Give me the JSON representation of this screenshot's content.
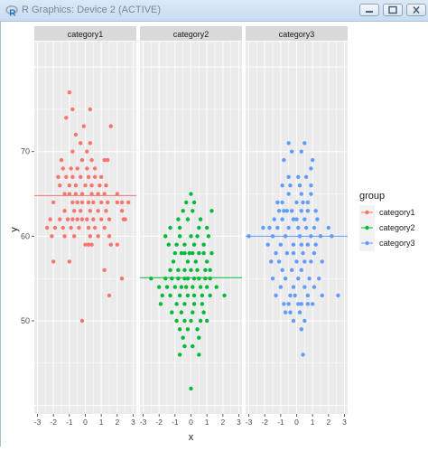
{
  "window": {
    "title": "R Graphics: Device 2 (ACTIVE)",
    "app_icon": "r-logo-icon",
    "controls": [
      "minimize-icon",
      "maximize-icon",
      "close-icon"
    ]
  },
  "chart_data": {
    "type": "scatter",
    "facet_by": "group",
    "xlabel": "x",
    "ylabel": "y",
    "xlim": [
      -3.2,
      3.2
    ],
    "ylim": [
      39,
      83
    ],
    "x_ticks": [
      "-3",
      "-2",
      "-1",
      "0",
      "1",
      "2",
      "3"
    ],
    "y_ticks": [
      "50",
      "60",
      "70"
    ],
    "grid": true,
    "legend": {
      "title": "group",
      "position": "right",
      "entries": [
        "category1",
        "category2",
        "category3"
      ]
    },
    "colors": {
      "category1": "#F8766D",
      "category2": "#00BA38",
      "category3": "#619CFF",
      "panel_bg": "#EBEBEB",
      "strip_bg": "#D9D9D9",
      "grid": "#FFFFFF"
    },
    "series": [
      {
        "name": "category1",
        "facet": "category1",
        "hline": 64.8,
        "points": [
          [
            -1,
            77
          ],
          [
            -0.8,
            75
          ],
          [
            0.3,
            75
          ],
          [
            -1.2,
            74
          ],
          [
            -0.1,
            73
          ],
          [
            1.6,
            73
          ],
          [
            -0.6,
            72
          ],
          [
            -0.3,
            71
          ],
          [
            0.3,
            71
          ],
          [
            -0.8,
            70
          ],
          [
            0.1,
            70
          ],
          [
            -1.5,
            69
          ],
          [
            -0.2,
            69
          ],
          [
            0.4,
            69
          ],
          [
            1.2,
            69
          ],
          [
            1.4,
            69
          ],
          [
            -1.4,
            68
          ],
          [
            -0.9,
            68
          ],
          [
            -0.5,
            68
          ],
          [
            0.1,
            68
          ],
          [
            0.6,
            68
          ],
          [
            -1.7,
            67
          ],
          [
            -1.2,
            67
          ],
          [
            -0.8,
            67
          ],
          [
            -0.3,
            67
          ],
          [
            0.2,
            67
          ],
          [
            0.6,
            67
          ],
          [
            1.0,
            67
          ],
          [
            -1.6,
            66
          ],
          [
            -1.0,
            66
          ],
          [
            -0.6,
            66
          ],
          [
            0,
            66
          ],
          [
            0.4,
            66
          ],
          [
            0.9,
            66
          ],
          [
            1.3,
            66
          ],
          [
            -1.3,
            65
          ],
          [
            -1.0,
            65
          ],
          [
            -0.6,
            65
          ],
          [
            -0.2,
            65
          ],
          [
            0.4,
            65
          ],
          [
            0.8,
            65
          ],
          [
            1.2,
            65
          ],
          [
            2.0,
            65
          ],
          [
            -2.0,
            64
          ],
          [
            -0.8,
            64
          ],
          [
            -0.5,
            64
          ],
          [
            -0.2,
            64
          ],
          [
            0.2,
            64
          ],
          [
            0.5,
            64
          ],
          [
            1.0,
            64
          ],
          [
            1.4,
            64
          ],
          [
            2.0,
            64
          ],
          [
            2.3,
            64
          ],
          [
            2.7,
            64
          ],
          [
            -1.3,
            63
          ],
          [
            -0.7,
            63
          ],
          [
            -0.3,
            63
          ],
          [
            0.3,
            63
          ],
          [
            0.8,
            63
          ],
          [
            1.3,
            63
          ],
          [
            2.3,
            63
          ],
          [
            -2.2,
            62
          ],
          [
            -1.6,
            62
          ],
          [
            -1.1,
            62
          ],
          [
            -0.8,
            62
          ],
          [
            -0.5,
            62
          ],
          [
            -0.2,
            62
          ],
          [
            0.1,
            62
          ],
          [
            0.5,
            62
          ],
          [
            1.0,
            62
          ],
          [
            1.5,
            62
          ],
          [
            2.4,
            62
          ],
          [
            2.5,
            62
          ],
          [
            -2.4,
            61
          ],
          [
            -1.9,
            61
          ],
          [
            -1.4,
            61
          ],
          [
            -0.9,
            61
          ],
          [
            -0.4,
            61
          ],
          [
            0.2,
            61
          ],
          [
            0.6,
            61
          ],
          [
            1.2,
            61
          ],
          [
            -2.1,
            60
          ],
          [
            -1.3,
            60
          ],
          [
            -0.7,
            60
          ],
          [
            0.3,
            60
          ],
          [
            0.8,
            60
          ],
          [
            1.5,
            60
          ],
          [
            0,
            59
          ],
          [
            0.2,
            59
          ],
          [
            0.4,
            59
          ],
          [
            1.6,
            59
          ],
          [
            2.0,
            59
          ],
          [
            -2.0,
            57
          ],
          [
            -1.0,
            57
          ],
          [
            1.2,
            56
          ],
          [
            2.3,
            55
          ],
          [
            1.5,
            53
          ],
          [
            -0.2,
            50
          ]
        ]
      },
      {
        "name": "category2",
        "facet": "category2",
        "hline": 55.1,
        "points": [
          [
            0,
            65
          ],
          [
            -0.3,
            64
          ],
          [
            0.2,
            64
          ],
          [
            0.1,
            63
          ],
          [
            -0.5,
            63
          ],
          [
            1.3,
            63
          ],
          [
            -0.8,
            62
          ],
          [
            -0.2,
            62
          ],
          [
            0.6,
            62
          ],
          [
            -1.3,
            61
          ],
          [
            -0.7,
            61
          ],
          [
            0.5,
            61
          ],
          [
            1.0,
            61
          ],
          [
            -1.6,
            60
          ],
          [
            -0.7,
            60
          ],
          [
            0,
            60
          ],
          [
            0.4,
            60
          ],
          [
            1.1,
            60
          ],
          [
            -1.4,
            59
          ],
          [
            -0.9,
            59
          ],
          [
            -0.4,
            59
          ],
          [
            0.2,
            59
          ],
          [
            0.8,
            59
          ],
          [
            -1.0,
            58
          ],
          [
            -0.6,
            58
          ],
          [
            -0.4,
            58
          ],
          [
            -0.1,
            58
          ],
          [
            0.1,
            58
          ],
          [
            0.5,
            58
          ],
          [
            0.8,
            58
          ],
          [
            1.3,
            58
          ],
          [
            -1.1,
            57
          ],
          [
            -0.2,
            57
          ],
          [
            0.3,
            57
          ],
          [
            1.0,
            57
          ],
          [
            -1.3,
            56
          ],
          [
            -0.8,
            56
          ],
          [
            -0.4,
            56
          ],
          [
            0,
            56
          ],
          [
            0.4,
            56
          ],
          [
            0.9,
            56
          ],
          [
            1.2,
            56
          ],
          [
            -2.5,
            55
          ],
          [
            -1.6,
            55
          ],
          [
            -1.2,
            55
          ],
          [
            -0.8,
            55
          ],
          [
            -0.4,
            55
          ],
          [
            -0.2,
            55
          ],
          [
            0.2,
            55
          ],
          [
            0.5,
            55
          ],
          [
            0.9,
            55
          ],
          [
            1.2,
            55
          ],
          [
            -2.0,
            54
          ],
          [
            -1.5,
            54
          ],
          [
            -1.0,
            54
          ],
          [
            -0.6,
            54
          ],
          [
            -0.3,
            54
          ],
          [
            0.1,
            54
          ],
          [
            0.6,
            54
          ],
          [
            1.0,
            54
          ],
          [
            1.6,
            54
          ],
          [
            -1.8,
            53
          ],
          [
            -1.3,
            53
          ],
          [
            -0.7,
            53
          ],
          [
            -0.2,
            53
          ],
          [
            0.2,
            53
          ],
          [
            0.7,
            53
          ],
          [
            1.2,
            53
          ],
          [
            2.1,
            53
          ],
          [
            -1.9,
            52
          ],
          [
            -0.9,
            52
          ],
          [
            -0.4,
            52
          ],
          [
            0.2,
            52
          ],
          [
            0.7,
            52
          ],
          [
            -1.2,
            51
          ],
          [
            -0.6,
            51
          ],
          [
            0.1,
            51
          ],
          [
            0.8,
            51
          ],
          [
            -0.9,
            50
          ],
          [
            -0.4,
            50
          ],
          [
            0,
            50
          ],
          [
            0.6,
            50
          ],
          [
            1.0,
            50
          ],
          [
            -0.7,
            49
          ],
          [
            -0.2,
            49
          ],
          [
            0.4,
            49
          ],
          [
            -0.5,
            48
          ],
          [
            0.5,
            48
          ],
          [
            -0.4,
            47
          ],
          [
            0.1,
            47
          ],
          [
            -0.7,
            46
          ],
          [
            0.5,
            46
          ],
          [
            0,
            42
          ]
        ]
      },
      {
        "name": "category3",
        "facet": "category3",
        "hline": 60,
        "points": [
          [
            -0.5,
            71
          ],
          [
            0.5,
            71
          ],
          [
            -0.3,
            70
          ],
          [
            0.3,
            70
          ],
          [
            1.0,
            69
          ],
          [
            -0.8,
            69
          ],
          [
            0.9,
            68
          ],
          [
            -0.5,
            67
          ],
          [
            0.1,
            67
          ],
          [
            0.6,
            67
          ],
          [
            -0.4,
            66
          ],
          [
            0.2,
            66
          ],
          [
            0.9,
            66
          ],
          [
            -0.9,
            66
          ],
          [
            0.3,
            65
          ],
          [
            0.9,
            65
          ],
          [
            -0.5,
            65
          ],
          [
            -0.9,
            64
          ],
          [
            0.4,
            64
          ],
          [
            -1.2,
            64
          ],
          [
            0.7,
            64
          ],
          [
            0,
            64
          ],
          [
            -1.1,
            63
          ],
          [
            -0.3,
            63
          ],
          [
            0.3,
            63
          ],
          [
            -0.8,
            63
          ],
          [
            1.2,
            63
          ],
          [
            -0.6,
            63
          ],
          [
            0.7,
            63
          ],
          [
            -0.9,
            62
          ],
          [
            0,
            62
          ],
          [
            0.5,
            62
          ],
          [
            -1.4,
            62
          ],
          [
            1.3,
            62
          ],
          [
            -0.2,
            62
          ],
          [
            -2.1,
            61
          ],
          [
            -1.7,
            61
          ],
          [
            -0.5,
            61
          ],
          [
            0.1,
            61
          ],
          [
            0.6,
            61
          ],
          [
            1.1,
            61
          ],
          [
            -1.2,
            61
          ],
          [
            2.0,
            61
          ],
          [
            -3.0,
            60
          ],
          [
            -1.5,
            60
          ],
          [
            -0.7,
            60
          ],
          [
            0.9,
            60
          ],
          [
            1.5,
            60
          ],
          [
            0.2,
            60
          ],
          [
            2.2,
            60
          ],
          [
            -1.8,
            59
          ],
          [
            -0.2,
            59
          ],
          [
            0.3,
            59
          ],
          [
            1.2,
            59
          ],
          [
            -1.0,
            59
          ],
          [
            0.7,
            59
          ],
          [
            -1.3,
            58
          ],
          [
            -0.6,
            58
          ],
          [
            0.4,
            58
          ],
          [
            1.1,
            58
          ],
          [
            -0.2,
            58
          ],
          [
            -1.1,
            57
          ],
          [
            0,
            57
          ],
          [
            0.5,
            57
          ],
          [
            0.9,
            57
          ],
          [
            1.6,
            57
          ],
          [
            -1.6,
            57
          ],
          [
            -0.3,
            56
          ],
          [
            0.3,
            56
          ],
          [
            -0.9,
            56
          ],
          [
            -1.5,
            55
          ],
          [
            -0.7,
            55
          ],
          [
            0.1,
            55
          ],
          [
            0.8,
            55
          ],
          [
            1.4,
            55
          ],
          [
            -1.0,
            54
          ],
          [
            -0.2,
            54
          ],
          [
            0.5,
            54
          ],
          [
            1.1,
            54
          ],
          [
            -1.3,
            53
          ],
          [
            -0.4,
            53
          ],
          [
            0.7,
            53
          ],
          [
            1.6,
            53
          ],
          [
            -0.1,
            53
          ],
          [
            -0.8,
            52
          ],
          [
            0.3,
            52
          ],
          [
            1.0,
            52
          ],
          [
            -0.5,
            52
          ],
          [
            0.1,
            52
          ],
          [
            0.7,
            52
          ],
          [
            -0.4,
            51
          ],
          [
            0.2,
            51
          ],
          [
            -0.7,
            51
          ],
          [
            0.5,
            50
          ],
          [
            -0.2,
            50
          ],
          [
            0.3,
            49
          ],
          [
            2.6,
            53
          ],
          [
            0.4,
            46
          ]
        ]
      }
    ]
  }
}
